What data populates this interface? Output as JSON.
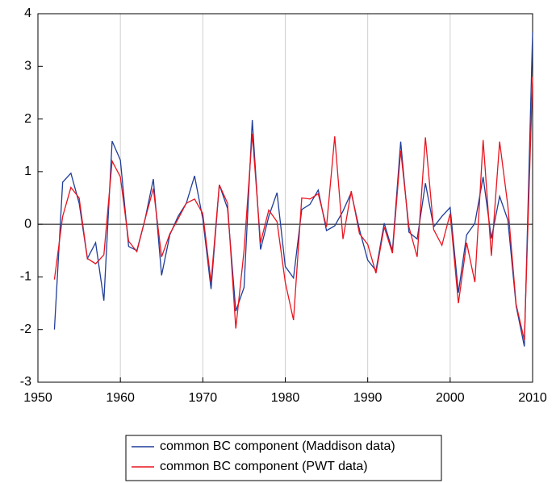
{
  "chart_data": {
    "type": "line",
    "x": [
      1952,
      1953,
      1954,
      1955,
      1956,
      1957,
      1958,
      1959,
      1960,
      1961,
      1962,
      1963,
      1964,
      1965,
      1966,
      1967,
      1968,
      1969,
      1970,
      1971,
      1972,
      1973,
      1974,
      1975,
      1976,
      1977,
      1978,
      1979,
      1980,
      1981,
      1982,
      1983,
      1984,
      1985,
      1986,
      1987,
      1988,
      1989,
      1990,
      1991,
      1992,
      1993,
      1994,
      1995,
      1996,
      1997,
      1998,
      1999,
      2000,
      2001,
      2002,
      2003,
      2004,
      2005,
      2006,
      2007,
      2008,
      2009,
      2010
    ],
    "series": [
      {
        "name": "common BC component (Maddison data)",
        "color": "#1f3d99",
        "values": [
          -2.0,
          0.8,
          0.97,
          0.4,
          -0.65,
          -0.35,
          -1.45,
          1.58,
          1.22,
          -0.42,
          -0.5,
          0.1,
          0.86,
          -0.97,
          -0.2,
          0.15,
          0.4,
          0.92,
          0.1,
          -1.23,
          0.75,
          0.3,
          -1.65,
          -1.2,
          1.98,
          -0.48,
          0.15,
          0.6,
          -0.8,
          -1.02,
          0.28,
          0.38,
          0.65,
          -0.12,
          -0.03,
          0.25,
          0.6,
          -0.1,
          -0.68,
          -0.88,
          0.02,
          -0.5,
          1.57,
          -0.15,
          -0.28,
          0.78,
          -0.05,
          0.15,
          0.32,
          -1.3,
          -0.2,
          0.02,
          0.9,
          -0.27,
          0.53,
          0.08,
          -1.55,
          -2.32,
          3.65
        ]
      },
      {
        "name": "common BC component (PWT data)",
        "color": "#e8141e",
        "values": [
          -1.05,
          0.15,
          0.7,
          0.5,
          -0.65,
          -0.75,
          -0.58,
          1.2,
          0.9,
          -0.32,
          -0.52,
          0.1,
          0.68,
          -0.62,
          -0.18,
          0.1,
          0.4,
          0.48,
          0.2,
          -1.1,
          0.75,
          0.4,
          -1.98,
          -0.5,
          1.72,
          -0.35,
          0.27,
          0.05,
          -1.1,
          -1.82,
          0.5,
          0.48,
          0.58,
          -0.05,
          1.67,
          -0.28,
          0.63,
          -0.18,
          -0.38,
          -0.93,
          -0.05,
          -0.55,
          1.4,
          -0.05,
          -0.62,
          1.65,
          -0.1,
          -0.4,
          0.2,
          -1.5,
          -0.35,
          -1.1,
          1.6,
          -0.6,
          1.57,
          0.35,
          -1.52,
          -2.2,
          2.8
        ]
      }
    ],
    "xlim": [
      1950,
      2010
    ],
    "xticks": [
      1950,
      1960,
      1970,
      1980,
      1990,
      2000,
      2010
    ],
    "ylim": [
      -3,
      4
    ],
    "yticks": [
      -3,
      -2,
      -1,
      0,
      1,
      2,
      3,
      4
    ],
    "grid": true,
    "zero_line": true,
    "legend": "bottom"
  }
}
